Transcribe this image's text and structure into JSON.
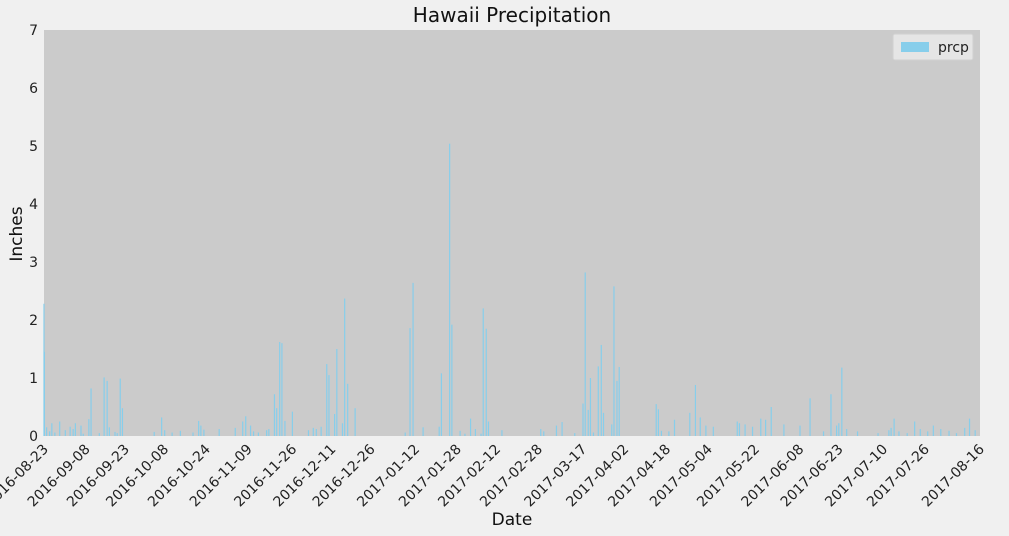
{
  "chart_data": {
    "type": "bar",
    "title": "Hawaii Precipitation",
    "xlabel": "Date",
    "ylabel": "Inches",
    "ylim": [
      0,
      7
    ],
    "yticks": [
      "0",
      "1",
      "2",
      "3",
      "4",
      "5",
      "6",
      "7"
    ],
    "xlim": [
      "2016-08-23",
      "2017-08-16"
    ],
    "xticks": [
      "2016-08-23",
      "2016-09-08",
      "2016-09-23",
      "2016-10-08",
      "2016-10-24",
      "2016-11-09",
      "2016-11-26",
      "2016-12-11",
      "2016-12-26",
      "2017-01-12",
      "2017-01-28",
      "2017-02-12",
      "2017-02-28",
      "2017-03-17",
      "2017-04-02",
      "2017-04-18",
      "2017-05-04",
      "2017-05-22",
      "2017-06-08",
      "2017-06-23",
      "2017-07-10",
      "2017-07-26",
      "2017-08-16"
    ],
    "grid": false,
    "legend": "top-right",
    "series": [
      {
        "name": "prcp",
        "color": "#87ceeb",
        "points": [
          [
            "2016-08-23",
            2.28
          ],
          [
            "2016-08-23",
            1.45
          ],
          [
            "2016-08-24",
            0.15
          ],
          [
            "2016-08-25",
            0.08
          ],
          [
            "2016-08-26",
            0.22
          ],
          [
            "2016-08-27",
            0.06
          ],
          [
            "2016-08-29",
            0.25
          ],
          [
            "2016-08-31",
            0.1
          ],
          [
            "2016-09-02",
            0.16
          ],
          [
            "2016-09-03",
            0.12
          ],
          [
            "2016-09-04",
            0.22
          ],
          [
            "2016-09-06",
            0.18
          ],
          [
            "2016-09-07",
            0.04
          ],
          [
            "2016-09-09",
            0.29
          ],
          [
            "2016-09-10",
            0.82
          ],
          [
            "2016-09-13",
            0.05
          ],
          [
            "2016-09-15",
            1.01
          ],
          [
            "2016-09-16",
            0.95
          ],
          [
            "2016-09-17",
            0.15
          ],
          [
            "2016-09-19",
            0.07
          ],
          [
            "2016-09-20",
            0.05
          ],
          [
            "2016-09-21",
            0.99
          ],
          [
            "2016-09-22",
            0.48
          ],
          [
            "2016-10-04",
            0.07
          ],
          [
            "2016-10-07",
            0.32
          ],
          [
            "2016-10-08",
            0.1
          ],
          [
            "2016-10-11",
            0.06
          ],
          [
            "2016-10-14",
            0.09
          ],
          [
            "2016-10-19",
            0.06
          ],
          [
            "2016-10-21",
            0.26
          ],
          [
            "2016-10-22",
            0.18
          ],
          [
            "2016-10-23",
            0.11
          ],
          [
            "2016-10-29",
            0.12
          ],
          [
            "2016-11-04",
            0.14
          ],
          [
            "2016-11-07",
            0.25
          ],
          [
            "2016-11-08",
            0.34
          ],
          [
            "2016-11-10",
            0.18
          ],
          [
            "2016-11-11",
            0.08
          ],
          [
            "2016-11-13",
            0.06
          ],
          [
            "2016-11-16",
            0.1
          ],
          [
            "2016-11-17",
            0.12
          ],
          [
            "2016-11-19",
            0.72
          ],
          [
            "2016-11-20",
            0.48
          ],
          [
            "2016-11-21",
            1.62
          ],
          [
            "2016-11-22",
            1.6
          ],
          [
            "2016-11-23",
            0.26
          ],
          [
            "2016-11-26",
            0.42
          ],
          [
            "2016-12-02",
            0.1
          ],
          [
            "2016-12-04",
            0.14
          ],
          [
            "2016-12-05",
            0.12
          ],
          [
            "2016-12-07",
            0.16
          ],
          [
            "2016-12-09",
            1.24
          ],
          [
            "2016-12-10",
            1.05
          ],
          [
            "2016-12-12",
            0.38
          ],
          [
            "2016-12-13",
            1.5
          ],
          [
            "2016-12-15",
            0.22
          ],
          [
            "2016-12-16",
            2.37
          ],
          [
            "2016-12-17",
            0.9
          ],
          [
            "2016-12-20",
            0.48
          ],
          [
            "2017-01-08",
            0.06
          ],
          [
            "2017-01-10",
            1.86
          ],
          [
            "2017-01-11",
            2.64
          ],
          [
            "2017-01-15",
            0.15
          ],
          [
            "2017-01-21",
            0.16
          ],
          [
            "2017-01-22",
            1.08
          ],
          [
            "2017-01-25",
            5.04
          ],
          [
            "2017-01-26",
            1.92
          ],
          [
            "2017-01-29",
            0.09
          ],
          [
            "2017-01-31",
            0.04
          ],
          [
            "2017-02-02",
            0.3
          ],
          [
            "2017-02-04",
            0.12
          ],
          [
            "2017-02-06",
            0.04
          ],
          [
            "2017-02-07",
            2.2
          ],
          [
            "2017-02-08",
            1.85
          ],
          [
            "2017-02-09",
            0.25
          ],
          [
            "2017-02-14",
            0.1
          ],
          [
            "2017-03-01",
            0.12
          ],
          [
            "2017-03-02",
            0.08
          ],
          [
            "2017-03-07",
            0.18
          ],
          [
            "2017-03-09",
            0.24
          ],
          [
            "2017-03-14",
            0.05
          ],
          [
            "2017-03-17",
            0.56
          ],
          [
            "2017-03-18",
            2.82
          ],
          [
            "2017-03-19",
            0.45
          ],
          [
            "2017-03-20",
            1.0
          ],
          [
            "2017-03-21",
            0.06
          ],
          [
            "2017-03-23",
            1.2
          ],
          [
            "2017-03-24",
            1.57
          ],
          [
            "2017-03-25",
            0.4
          ],
          [
            "2017-03-28",
            0.2
          ],
          [
            "2017-03-29",
            2.58
          ],
          [
            "2017-03-30",
            0.95
          ],
          [
            "2017-03-31",
            1.19
          ],
          [
            "2017-04-14",
            0.55
          ],
          [
            "2017-04-15",
            0.46
          ],
          [
            "2017-04-16",
            0.09
          ],
          [
            "2017-04-19",
            0.08
          ],
          [
            "2017-04-21",
            0.28
          ],
          [
            "2017-04-27",
            0.4
          ],
          [
            "2017-04-29",
            0.88
          ],
          [
            "2017-05-01",
            0.32
          ],
          [
            "2017-05-03",
            0.18
          ],
          [
            "2017-05-06",
            0.16
          ],
          [
            "2017-05-15",
            0.25
          ],
          [
            "2017-05-16",
            0.22
          ],
          [
            "2017-05-18",
            0.2
          ],
          [
            "2017-05-21",
            0.16
          ],
          [
            "2017-05-24",
            0.3
          ],
          [
            "2017-05-26",
            0.28
          ],
          [
            "2017-05-28",
            0.5
          ],
          [
            "2017-06-02",
            0.2
          ],
          [
            "2017-06-08",
            0.18
          ],
          [
            "2017-06-12",
            0.65
          ],
          [
            "2017-06-17",
            0.08
          ],
          [
            "2017-06-20",
            0.72
          ],
          [
            "2017-06-22",
            0.18
          ],
          [
            "2017-06-23",
            0.22
          ],
          [
            "2017-06-24",
            1.18
          ],
          [
            "2017-06-26",
            0.12
          ],
          [
            "2017-06-30",
            0.08
          ],
          [
            "2017-07-08",
            0.05
          ],
          [
            "2017-07-12",
            0.1
          ],
          [
            "2017-07-13",
            0.14
          ],
          [
            "2017-07-14",
            0.3
          ],
          [
            "2017-07-16",
            0.08
          ],
          [
            "2017-07-19",
            0.05
          ],
          [
            "2017-07-22",
            0.25
          ],
          [
            "2017-07-24",
            0.12
          ],
          [
            "2017-07-27",
            0.08
          ],
          [
            "2017-07-29",
            0.18
          ],
          [
            "2017-08-01",
            0.12
          ],
          [
            "2017-08-04",
            0.09
          ],
          [
            "2017-08-07",
            0.05
          ],
          [
            "2017-08-10",
            0.14
          ],
          [
            "2017-08-12",
            0.3
          ],
          [
            "2017-08-14",
            0.1
          ]
        ]
      }
    ]
  }
}
